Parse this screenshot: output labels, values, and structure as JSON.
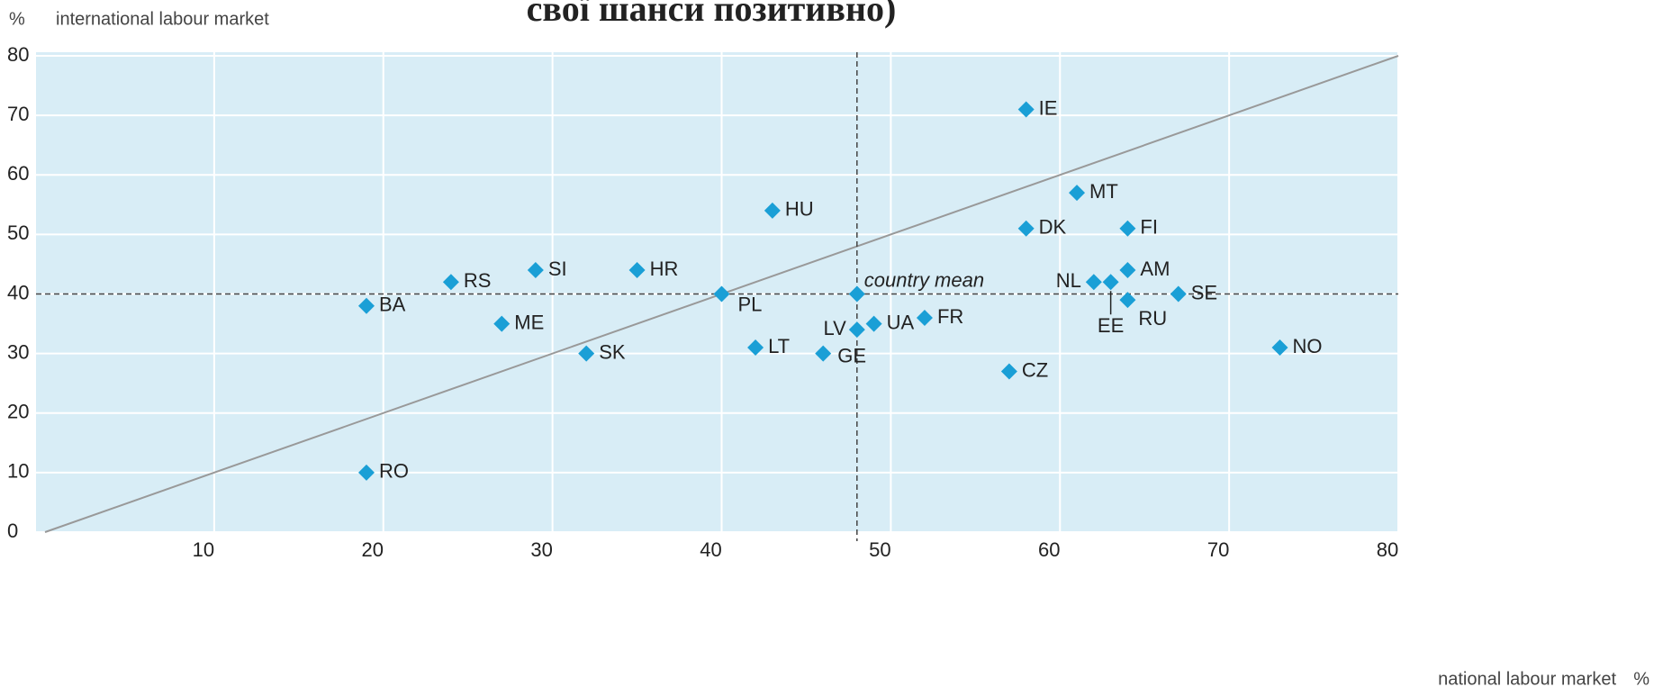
{
  "chart_data": {
    "type": "scatter",
    "title": "свої шанси позитивно)",
    "y_unit": "%",
    "y_label": "international labour market",
    "x_label": "national labour market",
    "x_unit": "%",
    "xlim": [
      0,
      80
    ],
    "ylim": [
      0,
      80
    ],
    "xticks": [
      10,
      20,
      30,
      40,
      50,
      60,
      70,
      80
    ],
    "yticks": [
      0,
      10,
      20,
      30,
      40,
      50,
      60,
      70,
      80
    ],
    "grid": true,
    "color": "#1a9fd6",
    "series": [
      {
        "name": null,
        "color": "#1a9fd6",
        "labels": [
          "IE",
          "MT",
          "HU",
          "DK",
          "FI",
          "AM",
          "SI",
          "HR",
          "RS",
          "NL",
          "EE",
          "PL",
          "SE",
          "RU",
          "BA",
          "ME",
          "UA",
          "FR",
          "LV",
          "LT",
          "NO",
          "SK",
          "GE",
          "CZ",
          "RO"
        ],
        "x": [
          58,
          61,
          43,
          58,
          64,
          64,
          29,
          35,
          24,
          62,
          63,
          40,
          67,
          64,
          19,
          27,
          49,
          52,
          48,
          42,
          73,
          32,
          46,
          57,
          19
        ],
        "values": [
          71,
          57,
          54,
          51,
          51,
          44,
          44,
          44,
          42,
          42,
          42,
          40,
          40,
          39,
          38,
          35,
          35,
          36,
          34,
          31,
          31,
          30,
          30,
          27,
          10
        ]
      }
    ],
    "mean": {
      "label": "country mean",
      "x": 48,
      "y": 40
    }
  }
}
